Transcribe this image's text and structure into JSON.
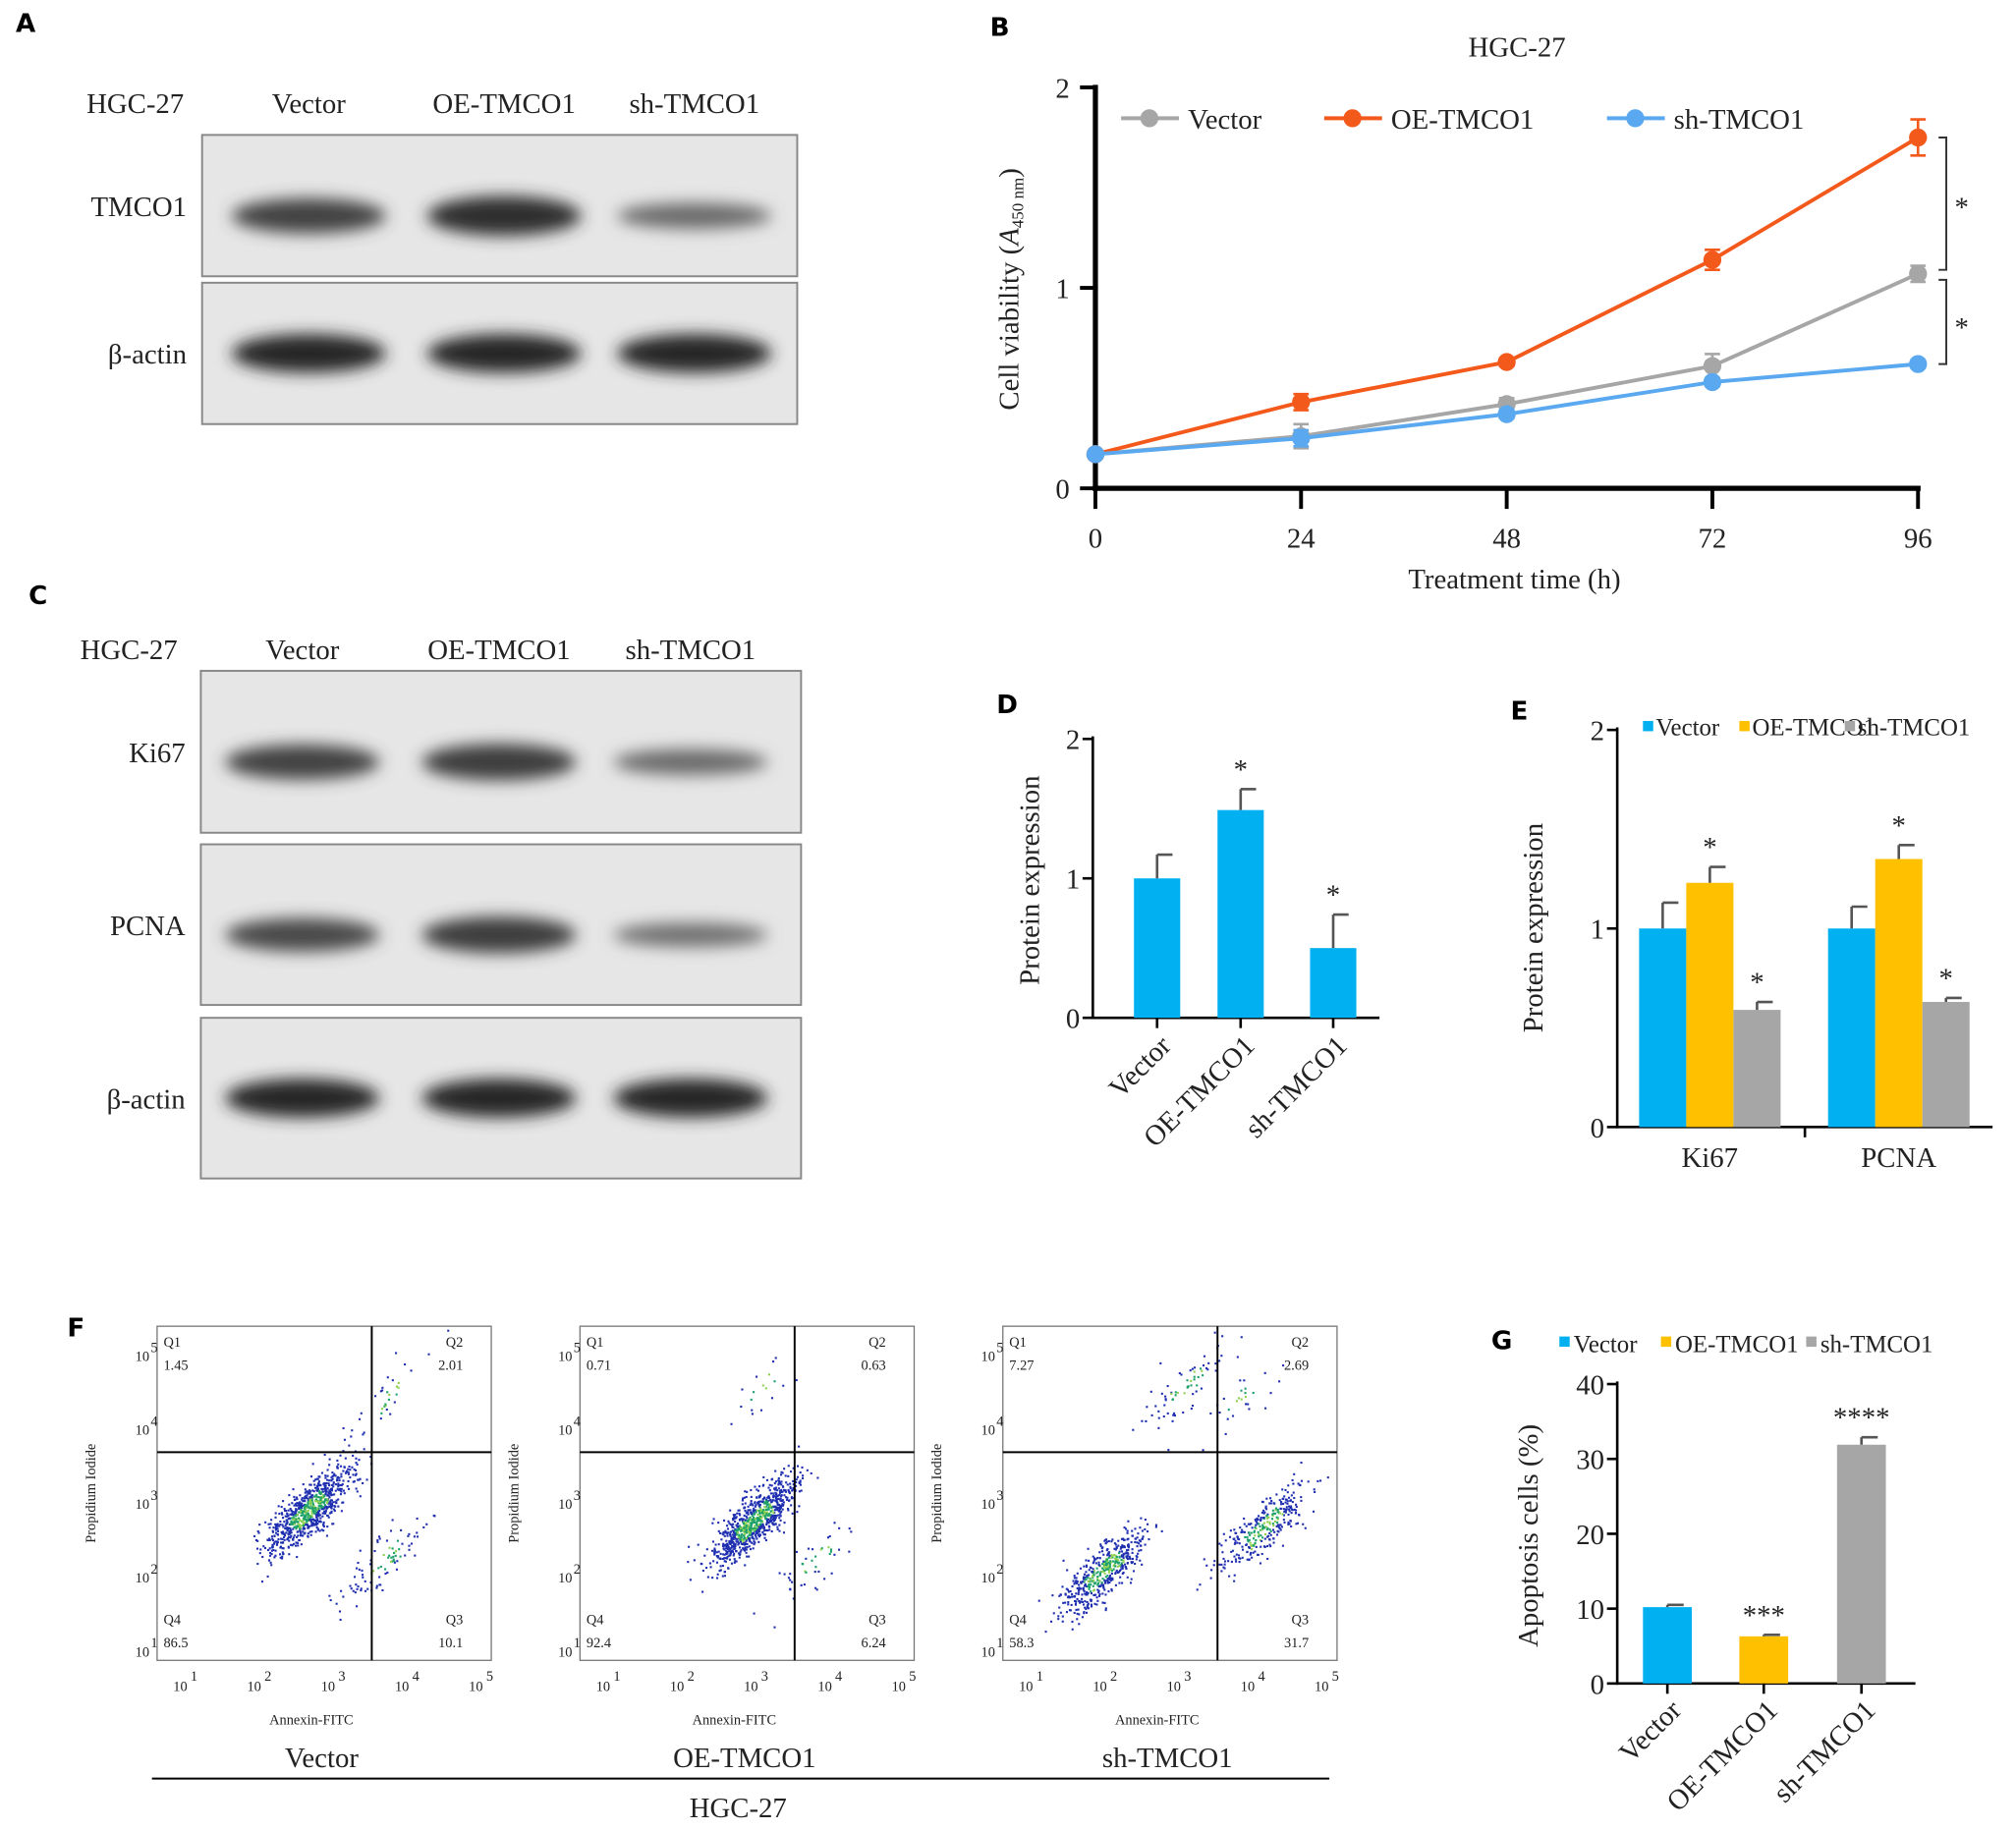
{
  "panels": {
    "A": {
      "letter": "A",
      "cell_line": "HGC-27",
      "lanes": [
        "Vector",
        "OE-TMCO1",
        "sh-TMCO1"
      ],
      "rows": [
        "TMCO1",
        "β-actin"
      ],
      "band_intensity": [
        [
          0.8,
          0.95,
          0.5
        ],
        [
          1,
          1,
          1
        ]
      ]
    },
    "C": {
      "letter": "C",
      "cell_line": "HGC-27",
      "lanes": [
        "Vector",
        "OE-TMCO1",
        "sh-TMCO1"
      ],
      "rows": [
        "Ki67",
        "PCNA",
        "β-actin"
      ],
      "band_intensity": [
        [
          0.8,
          0.85,
          0.5
        ],
        [
          0.75,
          0.85,
          0.45
        ],
        [
          1,
          1,
          1
        ]
      ]
    },
    "F": {
      "letter": "F",
      "cell_line": "HGC-27",
      "xlabel": "Annexin-FITC",
      "ylabel": "Propidium Iodide",
      "plots": [
        {
          "name": "Vector",
          "Q1": "1.45",
          "Q2": "2.01",
          "Q3": "10.1",
          "Q4": "86.5"
        },
        {
          "name": "OE-TMCO1",
          "Q1": "0.71",
          "Q2": "0.63",
          "Q3": "6.24",
          "Q4": "92.4"
        },
        {
          "name": "sh-TMCO1",
          "Q1": "7.27",
          "Q2": "2.69",
          "Q3": "31.7",
          "Q4": "58.3"
        }
      ],
      "quadrant_labels": [
        "Q1",
        "Q2",
        "Q3",
        "Q4"
      ],
      "tick_labels": [
        "10",
        "10",
        "10",
        "10",
        "10"
      ],
      "tick_exponents": [
        "1",
        "2",
        "3",
        "4",
        "5"
      ]
    }
  },
  "colors": {
    "vector_line": "#a6a6a6",
    "oe_line": "#f4591c",
    "sh_line": "#5aa9f0",
    "bar_blue": "#00b0f0",
    "bar_yellow": "#ffc000",
    "bar_gray": "#a6a6a6"
  },
  "chart_data": [
    {
      "panel": "B",
      "letter": "B",
      "type": "line",
      "title": "HGC-27",
      "xlabel": "Treatment time (h)",
      "ylabel": "Cell viability (A",
      "ylabel_sub": "450 nm",
      "ylabel_end": ")",
      "x": [
        0,
        24,
        48,
        72,
        96
      ],
      "xlim": [
        0,
        96
      ],
      "ylim": [
        0,
        2
      ],
      "yticks": [
        0,
        1,
        2
      ],
      "legend": "top",
      "series": [
        {
          "name": "Vector",
          "values": [
            0.17,
            0.26,
            0.42,
            0.61,
            1.07
          ],
          "errors": [
            0.01,
            0.06,
            0.03,
            0.06,
            0.04
          ]
        },
        {
          "name": "OE-TMCO1",
          "values": [
            0.17,
            0.43,
            0.63,
            1.14,
            1.75
          ],
          "errors": [
            0.01,
            0.04,
            0.02,
            0.05,
            0.09
          ]
        },
        {
          "name": "sh-TMCO1",
          "values": [
            0.17,
            0.25,
            0.37,
            0.53,
            0.62
          ],
          "errors": [
            0.01,
            0.04,
            0.02,
            0.02,
            0.02
          ]
        }
      ],
      "annotations": [
        "*",
        "*"
      ]
    },
    {
      "panel": "D",
      "letter": "D",
      "type": "bar",
      "ylabel": "Protein expression",
      "categories": [
        "Vector",
        "OE-TMCO1",
        "sh-TMCO1"
      ],
      "values": [
        1.0,
        1.49,
        0.5
      ],
      "errors": [
        0.17,
        0.15,
        0.24
      ],
      "ylim": [
        0,
        2
      ],
      "yticks": [
        0,
        1,
        2
      ],
      "annotations": [
        "",
        "*",
        "*"
      ]
    },
    {
      "panel": "E",
      "letter": "E",
      "type": "bar",
      "ylabel": "Protein expression",
      "categories": [
        "Ki67",
        "PCNA"
      ],
      "ylim": [
        0,
        2
      ],
      "yticks": [
        0,
        1,
        2
      ],
      "legend": "top",
      "series": [
        {
          "name": "Vector",
          "values": [
            1.0,
            1.0
          ],
          "errors": [
            0.13,
            0.11
          ],
          "annotations": [
            "",
            ""
          ]
        },
        {
          "name": "OE-TMCO1",
          "values": [
            1.23,
            1.35
          ],
          "errors": [
            0.08,
            0.07
          ],
          "annotations": [
            "*",
            "*"
          ]
        },
        {
          "name": "sh-TMCO1",
          "values": [
            0.59,
            0.63
          ],
          "errors": [
            0.04,
            0.02
          ],
          "annotations": [
            "*",
            "*"
          ]
        }
      ]
    },
    {
      "panel": "G",
      "letter": "G",
      "type": "bar",
      "ylabel": "Apoptosis cells (%)",
      "categories": [
        "Vector",
        "OE-TMCO1",
        "sh-TMCO1"
      ],
      "values": [
        10.2,
        6.3,
        31.9
      ],
      "errors": [
        0.3,
        0.2,
        1.0
      ],
      "ylim": [
        0,
        40
      ],
      "yticks": [
        0,
        10,
        20,
        30,
        40
      ],
      "legend": "top",
      "legend_entries": [
        "Vector",
        "OE-TMCO1",
        "sh-TMCO1"
      ],
      "annotations": [
        "",
        "***",
        "****"
      ]
    }
  ]
}
